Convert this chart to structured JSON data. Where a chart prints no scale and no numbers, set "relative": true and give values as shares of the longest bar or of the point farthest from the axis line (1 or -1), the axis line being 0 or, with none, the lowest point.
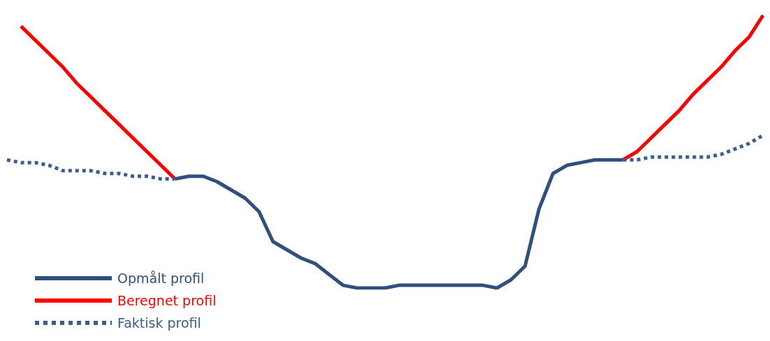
{
  "chart_data": {
    "type": "line",
    "relative": true,
    "marker": "none",
    "legend": "bottom left",
    "categories": [
      null,
      null,
      null,
      null,
      null,
      null,
      null,
      null,
      null,
      null,
      null,
      null,
      null,
      null,
      null,
      null,
      null,
      null,
      null,
      null,
      null,
      null,
      null,
      null,
      null,
      null,
      null,
      null,
      null,
      null,
      null,
      null,
      null,
      null,
      null,
      null,
      null,
      null,
      null,
      null,
      null,
      null,
      null,
      null,
      null,
      null,
      null,
      null,
      null,
      null,
      null,
      null,
      null,
      null,
      null
    ],
    "series": [
      {
        "name": "Opmålt profil",
        "color": "#2f4f7f",
        "line_style": "solid",
        "values": [
          null,
          null,
          null,
          null,
          null,
          null,
          null,
          null,
          null,
          null,
          null,
          null,
          0.4,
          0.41,
          0.41,
          0.39,
          0.36,
          0.33,
          0.28,
          0.17,
          0.14,
          0.11,
          0.09,
          0.05,
          0.01,
          0.0,
          0.0,
          0.0,
          0.01,
          0.01,
          0.01,
          0.01,
          0.01,
          0.01,
          0.01,
          0.0,
          0.03,
          0.08,
          0.29,
          0.42,
          0.45,
          0.46,
          0.47,
          0.47,
          0.47,
          null,
          null,
          null,
          null,
          null,
          null,
          null,
          null,
          null,
          null
        ]
      },
      {
        "name": "Beregnet profil",
        "color": "#ff0000",
        "line_style": "solid",
        "values": [
          null,
          0.96,
          0.91,
          0.86,
          0.81,
          0.75,
          0.7,
          0.65,
          0.6,
          0.55,
          0.5,
          0.45,
          0.4,
          null,
          null,
          null,
          null,
          null,
          null,
          null,
          null,
          null,
          null,
          null,
          null,
          null,
          null,
          null,
          null,
          null,
          null,
          null,
          null,
          null,
          null,
          null,
          null,
          null,
          null,
          null,
          null,
          null,
          null,
          null,
          0.47,
          0.5,
          0.55,
          0.6,
          0.65,
          0.71,
          0.76,
          0.81,
          0.87,
          0.92,
          1.0
        ]
      },
      {
        "name": "Faktisk profil",
        "color": "#3d5d8e",
        "line_style": "dotted",
        "values": [
          0.47,
          0.46,
          0.46,
          0.45,
          0.43,
          0.43,
          0.43,
          0.42,
          0.42,
          0.41,
          0.41,
          0.4,
          0.4,
          null,
          null,
          null,
          null,
          null,
          null,
          null,
          null,
          null,
          null,
          null,
          null,
          null,
          null,
          null,
          null,
          null,
          null,
          null,
          null,
          null,
          null,
          null,
          null,
          null,
          null,
          null,
          null,
          null,
          null,
          null,
          0.47,
          0.47,
          0.48,
          0.48,
          0.48,
          0.48,
          0.48,
          0.49,
          0.51,
          0.53,
          0.56
        ]
      }
    ]
  }
}
